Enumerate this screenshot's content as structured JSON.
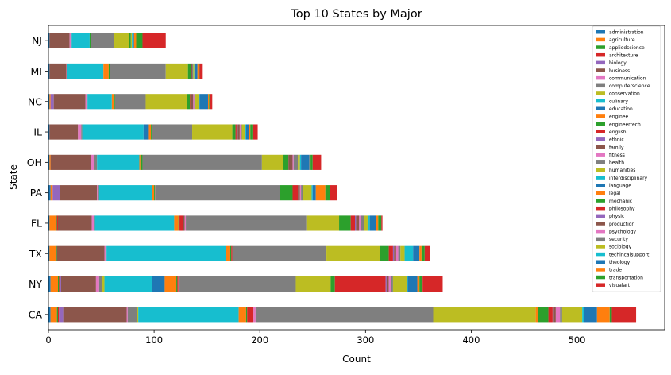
{
  "chart_data": {
    "type": "bar",
    "orientation": "horizontal",
    "stacked": true,
    "title": "Top 10 States by Major",
    "xlabel": "Count",
    "ylabel": "State",
    "xlim": [
      0,
      583
    ],
    "xticks": [
      0,
      100,
      200,
      300,
      400,
      500
    ],
    "grid": false,
    "legend_position": "right",
    "categories": [
      "CA",
      "NY",
      "TX",
      "FL",
      "PA",
      "OH",
      "IL",
      "NC",
      "MI",
      "NJ"
    ],
    "series": [
      {
        "name": "administration",
        "color": "#1f77b4",
        "values": [
          2,
          2,
          1,
          1,
          2,
          1,
          1,
          1,
          1,
          1
        ]
      },
      {
        "name": "agriculture",
        "color": "#ff7f0e",
        "values": [
          6,
          7,
          6,
          6,
          2,
          1,
          0,
          1,
          0,
          0
        ]
      },
      {
        "name": "appliedscience",
        "color": "#2ca02c",
        "values": [
          1,
          1,
          1,
          1,
          0,
          0,
          0,
          0,
          0,
          0
        ]
      },
      {
        "name": "architecture",
        "color": "#d62728",
        "values": [
          1,
          1,
          0,
          1,
          0,
          0,
          0,
          0,
          0,
          0
        ]
      },
      {
        "name": "biology",
        "color": "#9467bd",
        "values": [
          4,
          1,
          0,
          0,
          7,
          0,
          0,
          3,
          0,
          0
        ]
      },
      {
        "name": "business",
        "color": "#8c564b",
        "values": [
          60,
          33,
          45,
          32,
          35,
          38,
          27,
          30,
          16,
          19
        ]
      },
      {
        "name": "communication",
        "color": "#e377c2",
        "values": [
          1,
          3,
          1,
          2,
          1,
          3,
          3,
          1,
          1,
          1
        ]
      },
      {
        "name": "computerscience",
        "color": "#7f7f7f",
        "values": [
          9,
          3,
          1,
          1,
          1,
          3,
          1,
          1,
          0,
          1
        ]
      },
      {
        "name": "conservation",
        "color": "#bcbd22",
        "values": [
          1,
          2,
          0,
          0,
          0,
          0,
          0,
          0,
          0,
          0
        ]
      },
      {
        "name": "culinary",
        "color": "#17becf",
        "values": [
          95,
          45,
          113,
          75,
          50,
          40,
          58,
          23,
          34,
          17
        ]
      },
      {
        "name": "education",
        "color": "#1f77b4",
        "values": [
          0,
          12,
          0,
          0,
          0,
          0,
          5,
          0,
          0,
          0
        ]
      },
      {
        "name": "enginee",
        "color": "#ff7f0e",
        "values": [
          7,
          11,
          4,
          4,
          2,
          1,
          2,
          2,
          5,
          0
        ]
      },
      {
        "name": "engineertech",
        "color": "#2ca02c",
        "values": [
          1,
          1,
          1,
          1,
          1,
          2,
          1,
          1,
          1,
          1
        ]
      },
      {
        "name": "english",
        "color": "#d62728",
        "values": [
          6,
          1,
          1,
          3,
          0,
          0,
          0,
          0,
          0,
          0
        ]
      },
      {
        "name": "ethnic",
        "color": "#9467bd",
        "values": [
          0,
          0,
          0,
          0,
          0,
          0,
          0,
          0,
          0,
          0
        ]
      },
      {
        "name": "family",
        "color": "#8c564b",
        "values": [
          0,
          0,
          0,
          2,
          0,
          0,
          0,
          0,
          0,
          0
        ]
      },
      {
        "name": "fitness",
        "color": "#e377c2",
        "values": [
          2,
          1,
          0,
          1,
          1,
          0,
          0,
          0,
          0,
          0
        ]
      },
      {
        "name": "health",
        "color": "#7f7f7f",
        "values": [
          168,
          110,
          89,
          114,
          117,
          113,
          38,
          29,
          53,
          22
        ]
      },
      {
        "name": "humanities",
        "color": "#bcbd22",
        "values": [
          97,
          33,
          51,
          31,
          0,
          20,
          38,
          39,
          21,
          14
        ]
      },
      {
        "name": "interdisciplinary",
        "color": "#17becf",
        "values": [
          0,
          0,
          0,
          0,
          0,
          0,
          0,
          0,
          0,
          0
        ]
      },
      {
        "name": "language",
        "color": "#1f77b4",
        "values": [
          0,
          0,
          0,
          0,
          0,
          0,
          0,
          0,
          0,
          0
        ]
      },
      {
        "name": "legal",
        "color": "#ff7f0e",
        "values": [
          2,
          0,
          0,
          0,
          0,
          0,
          0,
          0,
          0,
          0
        ]
      },
      {
        "name": "mechanic",
        "color": "#2ca02c",
        "values": [
          10,
          4,
          8,
          11,
          12,
          5,
          3,
          3,
          3,
          2
        ]
      },
      {
        "name": "philosophy",
        "color": "#d62728",
        "values": [
          4,
          48,
          4,
          4,
          5,
          0,
          1,
          1,
          0,
          0
        ]
      },
      {
        "name": "physic",
        "color": "#9467bd",
        "values": [
          1,
          1,
          1,
          1,
          0,
          0,
          1,
          0,
          0,
          0
        ]
      },
      {
        "name": "production",
        "color": "#8c564b",
        "values": [
          2,
          2,
          2,
          3,
          2,
          4,
          2,
          2,
          1,
          0
        ]
      },
      {
        "name": "psychology",
        "color": "#e377c2",
        "values": [
          4,
          2,
          2,
          2,
          1,
          1,
          1,
          1,
          0,
          0
        ]
      },
      {
        "name": "security",
        "color": "#7f7f7f",
        "values": [
          2,
          2,
          2,
          3,
          2,
          4,
          1,
          1,
          1,
          0
        ]
      },
      {
        "name": "sociology",
        "color": "#bcbd22",
        "values": [
          19,
          13,
          4,
          3,
          8,
          2,
          3,
          3,
          1,
          1
        ]
      },
      {
        "name": "techincalsupport",
        "color": "#17becf",
        "values": [
          2,
          1,
          8,
          2,
          1,
          1,
          1,
          1,
          1,
          1
        ]
      },
      {
        "name": "theology",
        "color": "#1f77b4",
        "values": [
          12,
          9,
          6,
          6,
          3,
          8,
          3,
          8,
          2,
          1
        ]
      },
      {
        "name": "trade",
        "color": "#ff7f0e",
        "values": [
          12,
          2,
          2,
          2,
          9,
          1,
          1,
          1,
          1,
          2
        ]
      },
      {
        "name": "transportation",
        "color": "#2ca02c",
        "values": [
          2,
          3,
          3,
          3,
          4,
          2,
          2,
          1,
          1,
          6
        ]
      },
      {
        "name": "visualart",
        "color": "#d62728",
        "values": [
          23,
          19,
          5,
          1,
          7,
          8,
          5,
          2,
          3,
          22
        ]
      }
    ]
  }
}
